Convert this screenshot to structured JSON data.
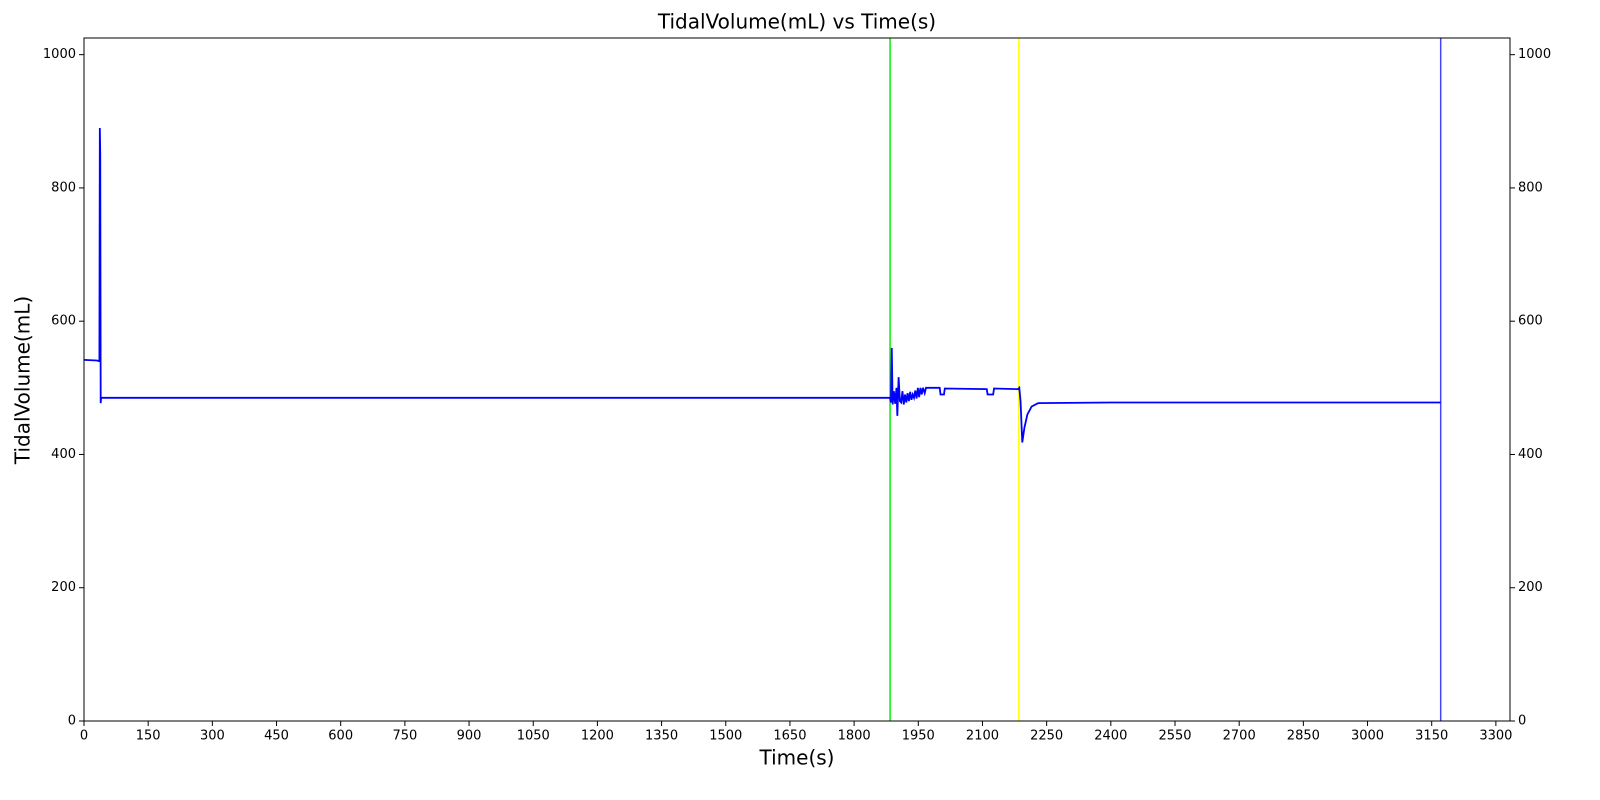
{
  "chart_data": {
    "type": "line",
    "title": "TidalVolume(mL) vs Time(s)",
    "x_label": "Time(s)",
    "y_label": "TidalVolume(mL)",
    "x": [
      0,
      30,
      36,
      37,
      38,
      39,
      40,
      1884,
      1886,
      1888,
      1890,
      1893,
      1896,
      1899,
      1901,
      1904,
      1907,
      1910,
      1913,
      1916,
      1919,
      1922,
      1925,
      1928,
      1931,
      1934,
      1937,
      1940,
      1943,
      1946,
      1949,
      1952,
      1955,
      1958,
      1961,
      1965,
      1968,
      2000,
      2002,
      2010,
      2012,
      2110,
      2112,
      2125,
      2127,
      2183,
      2186,
      2189,
      2193,
      2198,
      2205,
      2215,
      2230,
      2400,
      3171
    ],
    "values": [
      542,
      541,
      540,
      890,
      850,
      477,
      485,
      485,
      478,
      560,
      475,
      495,
      476,
      500,
      458,
      516,
      480,
      478,
      495,
      475,
      490,
      478,
      492,
      480,
      494,
      482,
      490,
      485,
      496,
      484,
      500,
      486,
      500,
      490,
      500,
      492,
      500,
      500,
      490,
      490,
      499,
      498,
      490,
      490,
      499,
      498,
      500,
      480,
      418,
      440,
      460,
      472,
      477,
      478,
      478
    ],
    "color": "#0000ff",
    "vlines": [
      {
        "x": 1884,
        "color": "#00ee00"
      },
      {
        "x": 2185,
        "color": "#ffff00"
      },
      {
        "x": 3171,
        "color": "#4444ff"
      }
    ],
    "xlim": [
      0,
      3333
    ],
    "ylim": [
      0,
      1025
    ],
    "y2lim": [
      0,
      1025
    ],
    "xticks": [
      0,
      150,
      300,
      450,
      600,
      750,
      900,
      1050,
      1200,
      1350,
      1500,
      1650,
      1800,
      1950,
      2100,
      2250,
      2400,
      2550,
      2700,
      2850,
      3000,
      3150,
      3300
    ],
    "yticks": [
      0,
      200,
      400,
      600,
      800,
      1000
    ],
    "y2ticks": [
      0,
      200,
      400,
      600,
      800,
      1000
    ]
  }
}
